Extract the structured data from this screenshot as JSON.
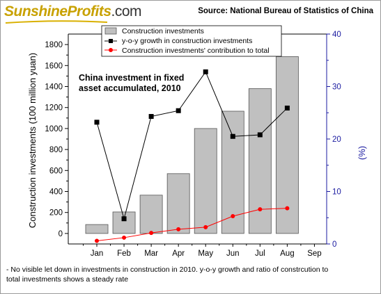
{
  "header": {
    "logo": {
      "part1": "Sunshine",
      "part2": "Profits",
      "part3": ".com"
    },
    "source": "Source: National Bureau of Statistics of China"
  },
  "footnote": "- No visible let down in investments in construction in 2010. y-o-y growth and ratio of constrcution to total investments shows a steady rate",
  "colors": {
    "bar_fill": "#c0c0c0",
    "bar_stroke": "#555555",
    "growth_line": "#000000",
    "contribution_line": "#ff0000",
    "right_axis": "#1a1aa0"
  },
  "chart_data": {
    "type": "bar",
    "annotation_line1": "China investment in fixed",
    "annotation_line2": "asset accumulated, 2010",
    "categories": [
      "Jan",
      "Feb",
      "Mar",
      "Apr",
      "May",
      "Jun",
      "Jul",
      "Aug",
      "Sep"
    ],
    "ylabel_left": "Construction investments (100 million yuan)",
    "ylabel_right": "(%)",
    "ylim_left": [
      -100,
      1900
    ],
    "yticks_left": [
      0,
      200,
      400,
      600,
      800,
      1000,
      1200,
      1400,
      1600,
      1800
    ],
    "ylim_right": [
      0,
      40
    ],
    "yticks_right": [
      0,
      10,
      20,
      30,
      40
    ],
    "legend_position": "top-center",
    "series": [
      {
        "name": "Construction investments",
        "kind": "bar",
        "axis": "left",
        "values": [
          85,
          205,
          365,
          570,
          1000,
          1165,
          1380,
          1685,
          null
        ]
      },
      {
        "name": "y-o-y growth in construction investments",
        "kind": "line",
        "marker": "square",
        "axis": "right",
        "values": [
          23.2,
          4.8,
          24.3,
          25.4,
          32.8,
          20.5,
          20.8,
          25.9,
          null
        ]
      },
      {
        "name": "Construction investments' contribution to total",
        "kind": "line",
        "marker": "circle",
        "axis": "right",
        "values": [
          0.6,
          1.2,
          2.1,
          2.8,
          3.2,
          5.3,
          6.6,
          6.8,
          null
        ]
      }
    ]
  }
}
